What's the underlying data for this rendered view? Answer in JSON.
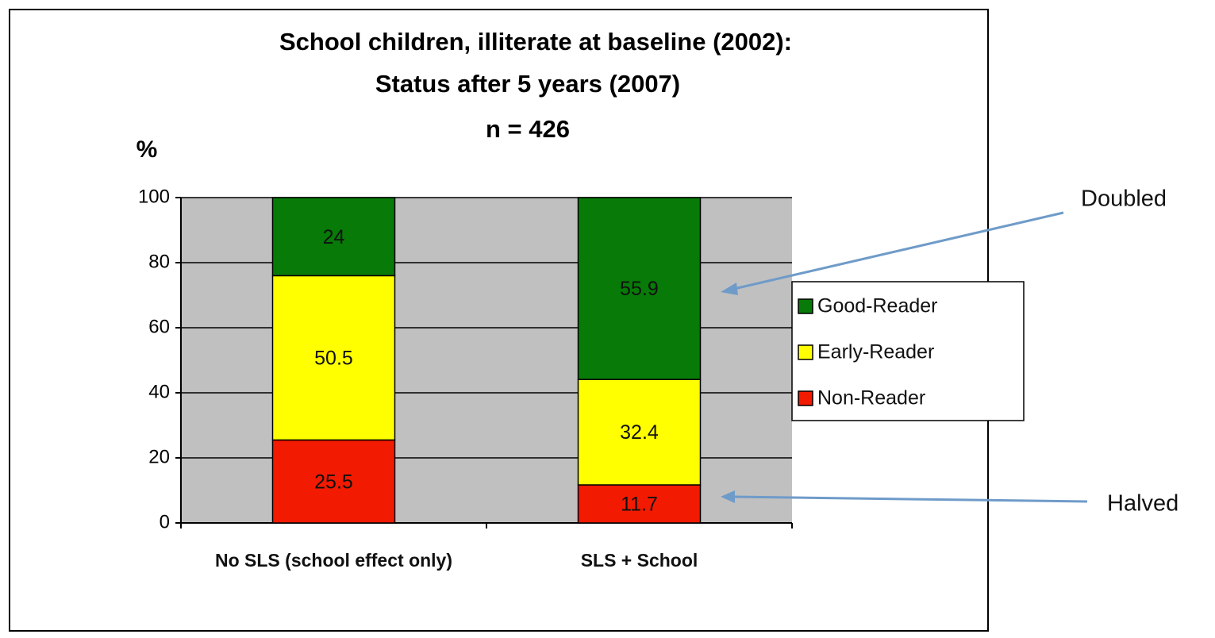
{
  "chart_data": {
    "type": "stacked_bar",
    "title": "School children, illiterate at baseline (2002):",
    "subtitle": "Status after 5 years (2007)",
    "note": "n = 426",
    "ylabel": "%",
    "categories": [
      "No SLS (school effect only)",
      "SLS + School"
    ],
    "series": [
      {
        "name": "Non-Reader",
        "color": "#f21a00",
        "values": [
          25.5,
          11.7
        ]
      },
      {
        "name": "Early-Reader",
        "color": "#ffff00",
        "values": [
          50.5,
          32.4
        ]
      },
      {
        "name": "Good-Reader",
        "color": "#077a07",
        "values": [
          24,
          55.9
        ]
      }
    ],
    "ylim": [
      0,
      100
    ],
    "yticks": [
      0,
      20,
      40,
      60,
      80,
      100
    ],
    "grid": true,
    "legend": "right",
    "annotations": [
      {
        "text": "Doubled"
      },
      {
        "text": "Halved"
      }
    ]
  }
}
